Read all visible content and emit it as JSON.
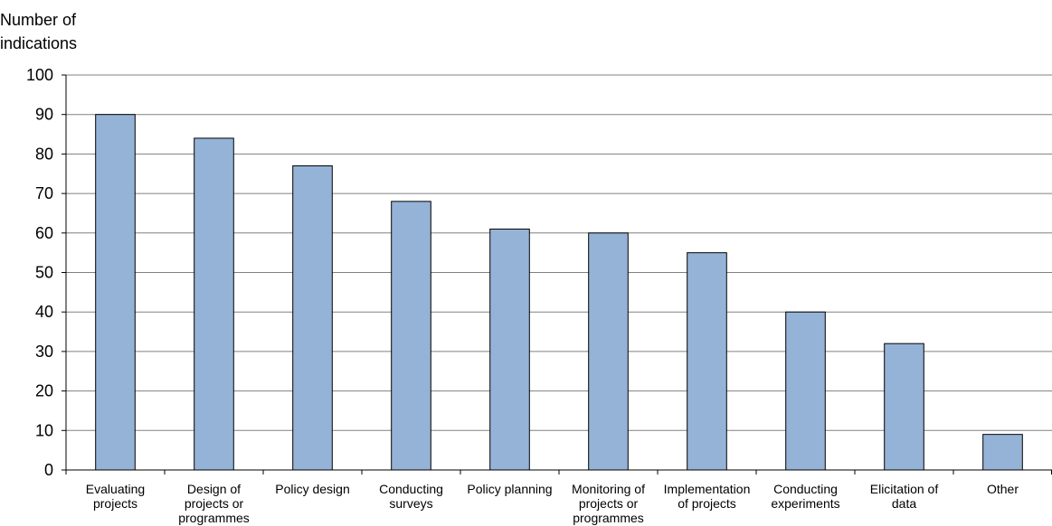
{
  "chart_data": {
    "type": "bar",
    "title": "",
    "xlabel": "",
    "ylabel": [
      "Number of",
      "indications"
    ],
    "ylim": [
      0,
      100
    ],
    "yticks": [
      0,
      10,
      20,
      30,
      40,
      50,
      60,
      70,
      80,
      90,
      100
    ],
    "categories": [
      [
        "Evaluating",
        "projects"
      ],
      [
        "Design of",
        "projects or",
        "programmes"
      ],
      [
        "Policy design"
      ],
      [
        "Conducting",
        "surveys"
      ],
      [
        "Policy planning"
      ],
      [
        "Monitoring of",
        "projects or",
        "programmes"
      ],
      [
        "Implementation",
        "of projects"
      ],
      [
        "Conducting",
        "experiments"
      ],
      [
        "Elicitation of",
        "data"
      ],
      [
        "Other"
      ]
    ],
    "values": [
      90,
      84,
      77,
      68,
      61,
      60,
      55,
      40,
      32,
      9
    ],
    "grid": true,
    "colors": {
      "bar_fill": "#95b3d7",
      "bar_stroke": "#000000",
      "grid": "#808080",
      "axis": "#000000"
    }
  }
}
